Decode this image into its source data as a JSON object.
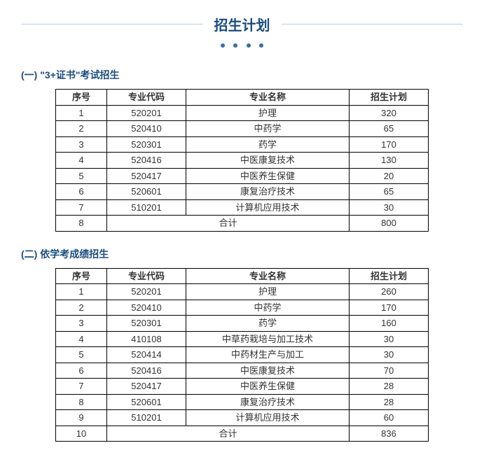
{
  "page_title": "招生计划",
  "accent_color": "#1a4d80",
  "dot_color": "#3a6ea5",
  "line_color": "#b8cde0",
  "border_color": "#000000",
  "background_color": "#ffffff",
  "sections": [
    {
      "heading": "(一) \"3+证书\"考试招生",
      "columns": [
        "序号",
        "专业代码",
        "专业名称",
        "招生计划"
      ],
      "rows": [
        [
          "1",
          "520201",
          "护理",
          "320"
        ],
        [
          "2",
          "520410",
          "中药学",
          "65"
        ],
        [
          "3",
          "520301",
          "药学",
          "170"
        ],
        [
          "4",
          "520416",
          "中医康复技术",
          "130"
        ],
        [
          "5",
          "520417",
          "中医养生保健",
          "20"
        ],
        [
          "6",
          "520601",
          "康复治疗技术",
          "65"
        ],
        [
          "7",
          "510201",
          "计算机应用技术",
          "30"
        ]
      ],
      "total_row": {
        "idx": "8",
        "label": "合计",
        "value": "800"
      }
    },
    {
      "heading": "(二) 依学考成绩招生",
      "columns": [
        "序号",
        "专业代码",
        "专业名称",
        "招生计划"
      ],
      "rows": [
        [
          "1",
          "520201",
          "护理",
          "260"
        ],
        [
          "2",
          "520410",
          "中药学",
          "170"
        ],
        [
          "3",
          "520301",
          "药学",
          "160"
        ],
        [
          "4",
          "410108",
          "中草药栽培与加工技术",
          "30"
        ],
        [
          "5",
          "520414",
          "中药材生产与加工",
          "30"
        ],
        [
          "6",
          "520416",
          "中医康复技术",
          "70"
        ],
        [
          "7",
          "520417",
          "中医养生保健",
          "28"
        ],
        [
          "8",
          "520601",
          "康复治疗技术",
          "28"
        ],
        [
          "9",
          "510201",
          "计算机应用技术",
          "60"
        ]
      ],
      "total_row": {
        "idx": "10",
        "label": "合计",
        "value": "836"
      }
    }
  ]
}
